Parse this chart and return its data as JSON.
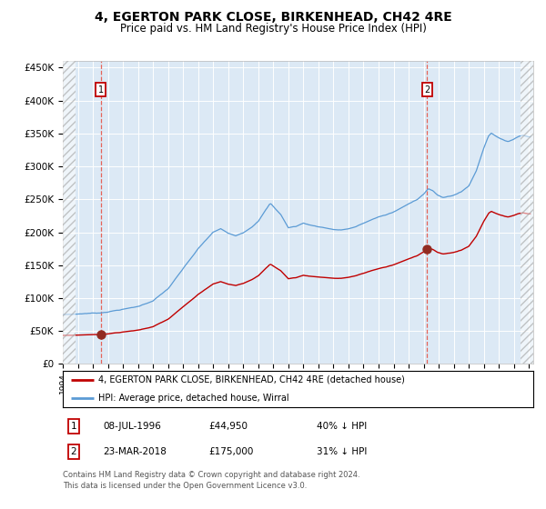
{
  "title": "4, EGERTON PARK CLOSE, BIRKENHEAD, CH42 4RE",
  "subtitle": "Price paid vs. HM Land Registry's House Price Index (HPI)",
  "hpi_line_color": "#5B9BD5",
  "price_line_color": "#C00000",
  "marker_color": "#922B21",
  "vline_color": "#E74C3C",
  "bg_color": "#DCE9F5",
  "fig_bg": "#FFFFFF",
  "ylim_max": 460000,
  "xlim_min": 1994.0,
  "xlim_max": 2025.3,
  "purchase1_year": 1996.52,
  "purchase1_price": 44950,
  "purchase2_year": 2018.22,
  "purchase2_price": 175000,
  "legend_entry1": "4, EGERTON PARK CLOSE, BIRKENHEAD, CH42 4RE (detached house)",
  "legend_entry2": "HPI: Average price, detached house, Wirral",
  "table_row1": [
    "1",
    "08-JUL-1996",
    "£44,950",
    "40% ↓ HPI"
  ],
  "table_row2": [
    "2",
    "23-MAR-2018",
    "£175,000",
    "31% ↓ HPI"
  ],
  "footnote_line1": "Contains HM Land Registry data © Crown copyright and database right 2024.",
  "footnote_line2": "This data is licensed under the Open Government Licence v3.0.",
  "hpi_anchors_years": [
    1994.0,
    1995.0,
    1995.5,
    1996.0,
    1996.5,
    1997.0,
    1997.5,
    1998.0,
    1999.0,
    2000.0,
    2001.0,
    2002.0,
    2003.0,
    2004.0,
    2004.5,
    2005.0,
    2005.5,
    2006.0,
    2006.5,
    2007.0,
    2007.5,
    2007.8,
    2008.5,
    2009.0,
    2009.5,
    2010.0,
    2010.5,
    2011.0,
    2011.5,
    2012.0,
    2012.5,
    2013.0,
    2013.5,
    2014.0,
    2014.5,
    2015.0,
    2015.5,
    2016.0,
    2016.5,
    2017.0,
    2017.3,
    2017.6,
    2018.0,
    2018.3,
    2018.6,
    2018.9,
    2019.3,
    2019.7,
    2020.0,
    2020.5,
    2021.0,
    2021.5,
    2022.0,
    2022.3,
    2022.5,
    2023.0,
    2023.3,
    2023.6,
    2024.0,
    2024.3,
    2024.6,
    2025.0
  ],
  "hpi_anchors_prices": [
    75000,
    76000,
    77000,
    77500,
    78000,
    80000,
    82000,
    84000,
    88000,
    97000,
    115000,
    145000,
    175000,
    200000,
    205000,
    198000,
    195000,
    200000,
    208000,
    218000,
    235000,
    245000,
    228000,
    208000,
    210000,
    215000,
    212000,
    210000,
    208000,
    206000,
    205000,
    207000,
    210000,
    215000,
    220000,
    225000,
    228000,
    232000,
    238000,
    244000,
    248000,
    252000,
    260000,
    268000,
    265000,
    258000,
    254000,
    256000,
    258000,
    263000,
    272000,
    295000,
    330000,
    348000,
    353000,
    346000,
    342000,
    340000,
    344000,
    348000,
    350000,
    348000
  ]
}
